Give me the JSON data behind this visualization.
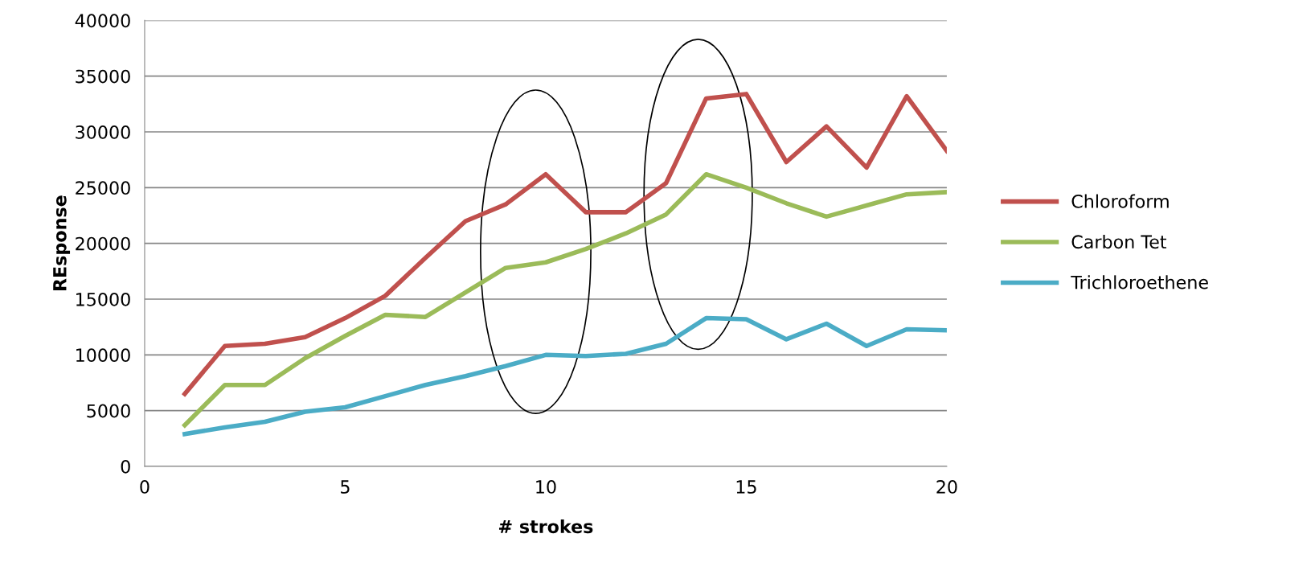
{
  "chart_data": {
    "type": "line",
    "xlabel": "# strokes",
    "ylabel": "REsponse",
    "x": [
      1,
      2,
      3,
      4,
      5,
      6,
      7,
      8,
      9,
      10,
      11,
      12,
      13,
      14,
      15,
      16,
      17,
      18,
      19,
      20
    ],
    "series": [
      {
        "name": "Chloroform",
        "color": "#c0504d",
        "values": [
          6500,
          10800,
          11000,
          11600,
          13300,
          15300,
          18700,
          22000,
          23500,
          26200,
          22800,
          22800,
          25400,
          33000,
          33400,
          27300,
          30500,
          26800,
          33200,
          28300
        ]
      },
      {
        "name": "Carbon Tet",
        "color": "#9bbb59",
        "values": [
          3700,
          7300,
          7300,
          9700,
          11700,
          13600,
          13400,
          15600,
          17800,
          18300,
          19500,
          20900,
          22600,
          26200,
          25000,
          23600,
          22400,
          23400,
          24400,
          24600
        ]
      },
      {
        "name": "Trichloroethene",
        "color": "#4bacc6",
        "values": [
          2900,
          3500,
          4000,
          4900,
          5300,
          6300,
          7300,
          8100,
          9000,
          10000,
          9900,
          10100,
          11000,
          13300,
          13200,
          11400,
          12800,
          10800,
          12300,
          12200
        ]
      }
    ],
    "xlim": [
      0,
      20
    ],
    "xticks": [
      0,
      5,
      10,
      15,
      20
    ],
    "ylim": [
      0,
      40000
    ],
    "yticks": [
      0,
      5000,
      10000,
      15000,
      20000,
      25000,
      30000,
      35000,
      40000
    ],
    "grid": "y",
    "legend": "right",
    "marker": "none",
    "line_style": "solid"
  }
}
